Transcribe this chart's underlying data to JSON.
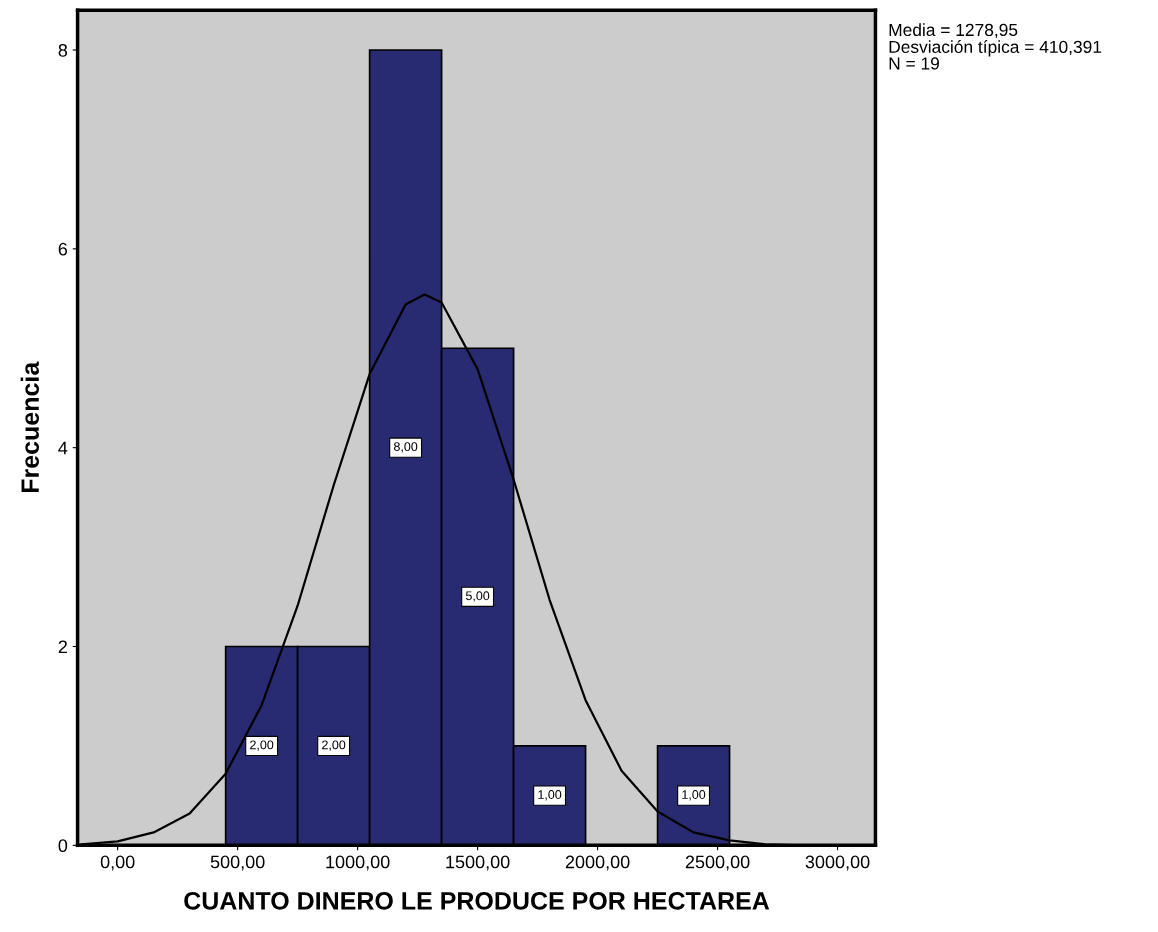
{
  "chart_data": {
    "type": "histogram",
    "xlabel": "CUANTO DINERO LE PRODUCE POR HECTAREA",
    "ylabel": "Frecuencia",
    "bins": [
      450,
      750,
      1050,
      1350,
      1650,
      1950,
      2250,
      2550
    ],
    "values": [
      2,
      2,
      8,
      5,
      1,
      0,
      1
    ],
    "value_labels": [
      "2,00",
      "2,00",
      "8,00",
      "5,00",
      "1,00",
      null,
      "1,00"
    ],
    "color": "#282a72",
    "series": [
      {
        "type": "line",
        "color": "#000000",
        "x": [
          -150,
          0,
          150,
          300,
          450,
          600,
          750,
          900,
          1050,
          1200,
          1278.95,
          1350,
          1500,
          1650,
          1800,
          1950,
          2100,
          2250,
          2400,
          2550,
          2700,
          2850,
          3000,
          3150
        ],
        "values": [
          0.01,
          0.04,
          0.13,
          0.32,
          0.72,
          1.41,
          2.41,
          3.62,
          4.74,
          5.44,
          5.54,
          5.46,
          4.79,
          3.68,
          2.47,
          1.46,
          0.75,
          0.34,
          0.13,
          0.05,
          0.01,
          0,
          0,
          0
        ]
      }
    ],
    "xlim": [
      -167,
      3158
    ],
    "ylim": [
      0,
      8.4
    ],
    "xticks": [
      {
        "value": 0,
        "label": "0,00"
      },
      {
        "value": 500,
        "label": "500,00"
      },
      {
        "value": 1000,
        "label": "1000,00"
      },
      {
        "value": 1500,
        "label": "1500,00"
      },
      {
        "value": 2000,
        "label": "2000,00"
      },
      {
        "value": 2500,
        "label": "2500,00"
      },
      {
        "value": 3000,
        "label": "3000,00"
      }
    ],
    "yticks": [
      0,
      2,
      4,
      6,
      8
    ],
    "annotations": [
      "Media = 1278,95",
      "Desviación típica = 410,391",
      "N = 19"
    ],
    "grid": false,
    "legend": false
  }
}
